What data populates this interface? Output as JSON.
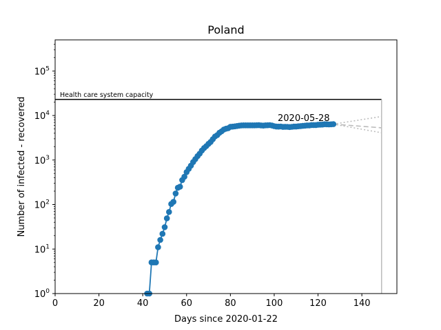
{
  "chart_data": {
    "type": "line",
    "title": "Poland",
    "xlabel": "Days since 2020-01-22",
    "ylabel": "Number of infected - recovered",
    "xlim": [
      0,
      156
    ],
    "ylim": [
      1,
      500000
    ],
    "yscale": "log",
    "grid": false,
    "xticks": [
      0,
      20,
      40,
      60,
      80,
      100,
      120,
      140
    ],
    "yticks": [
      {
        "value": 1,
        "base": "10",
        "exp": "0"
      },
      {
        "value": 10,
        "base": "10",
        "exp": "1"
      },
      {
        "value": 100,
        "base": "10",
        "exp": "2"
      },
      {
        "value": 1000,
        "base": "10",
        "exp": "3"
      },
      {
        "value": 10000,
        "base": "10",
        "exp": "4"
      },
      {
        "value": 100000,
        "base": "10",
        "exp": "5"
      }
    ],
    "capacity": {
      "label": "Health care system capacity",
      "value": 23000,
      "x_end": 149
    },
    "vline_x": 149,
    "annotation": {
      "text": "2020-05-28",
      "x": 127,
      "y": 6300
    },
    "series": [
      {
        "color": "#1f77b4",
        "x": [
          42,
          43,
          44,
          45,
          46,
          47,
          48,
          49,
          50,
          51,
          52,
          53,
          54,
          55,
          56,
          57,
          58,
          59,
          60,
          61,
          62,
          63,
          64,
          65,
          66,
          67,
          68,
          69,
          70,
          71,
          72,
          73,
          74,
          75,
          76,
          77,
          78,
          79,
          80,
          81,
          82,
          83,
          84,
          85,
          86,
          87,
          88,
          89,
          90,
          91,
          92,
          93,
          94,
          95,
          96,
          97,
          98,
          99,
          100,
          101,
          102,
          103,
          104,
          105,
          106,
          107,
          108,
          109,
          110,
          111,
          112,
          113,
          114,
          115,
          116,
          117,
          118,
          119,
          120,
          121,
          122,
          123,
          124,
          125,
          126,
          127
        ],
        "y": [
          1,
          1,
          5,
          5,
          5,
          11,
          16,
          22,
          31,
          49,
          68,
          103,
          115,
          177,
          238,
          251,
          355,
          420,
          536,
          634,
          749,
          901,
          1051,
          1221,
          1389,
          1638,
          1862,
          2055,
          2311,
          2554,
          2946,
          3383,
          3627,
          4102,
          4413,
          4848,
          5055,
          5205,
          5575,
          5616,
          5711,
          5796,
          5908,
          5988,
          6013,
          6022,
          6012,
          6020,
          6008,
          6012,
          6041,
          6054,
          5999,
          5926,
          6014,
          6031,
          6087,
          5958,
          5757,
          5634,
          5619,
          5668,
          5537,
          5573,
          5556,
          5497,
          5558,
          5636,
          5645,
          5723,
          5776,
          5849,
          5918,
          5995,
          5989,
          6112,
          6112,
          6103,
          6209,
          6237,
          6256,
          6371,
          6344,
          6306,
          6351,
          6390
        ]
      }
    ],
    "projections": [
      {
        "style": "dashed",
        "x": [
          127,
          149
        ],
        "y": [
          6390,
          5300
        ]
      },
      {
        "style": "dotted",
        "x": [
          127,
          149
        ],
        "y": [
          6390,
          9500
        ]
      },
      {
        "style": "dotted",
        "x": [
          127,
          149
        ],
        "y": [
          6390,
          4100
        ]
      }
    ]
  }
}
